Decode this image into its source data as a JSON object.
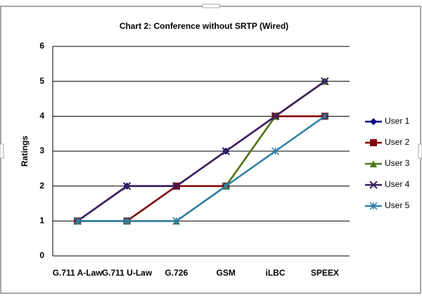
{
  "chart_data": {
    "type": "line",
    "title": "Chart 2: Conference without SRTP (Wired)",
    "y_label": "Ratings",
    "categories": [
      "G.711 A-Law",
      "G.711 U-Law",
      "G.726",
      "GSM",
      "iLBC",
      "SPEEX"
    ],
    "ylim": [
      0,
      6
    ],
    "yticks": [
      0,
      1,
      2,
      3,
      4,
      5,
      6
    ],
    "grid": true,
    "legend": "right",
    "series": [
      {
        "name": "User 1",
        "color": "#000080",
        "marker": "diamond",
        "values": [
          1,
          2,
          2,
          3,
          4,
          5
        ]
      },
      {
        "name": "User 2",
        "color": "#800000",
        "marker": "square",
        "values": [
          1,
          1,
          2,
          2,
          4,
          4
        ]
      },
      {
        "name": "User 3",
        "color": "#4e7a1a",
        "marker": "triangle",
        "values": [
          1,
          1,
          1,
          2,
          4,
          5
        ]
      },
      {
        "name": "User 4",
        "color": "#3b1f5c",
        "marker": "x",
        "values": [
          1,
          2,
          2,
          3,
          4,
          5
        ]
      },
      {
        "name": "User 5",
        "color": "#2e7fa8",
        "marker": "star",
        "values": [
          1,
          1,
          1,
          2,
          3,
          4
        ]
      }
    ]
  }
}
